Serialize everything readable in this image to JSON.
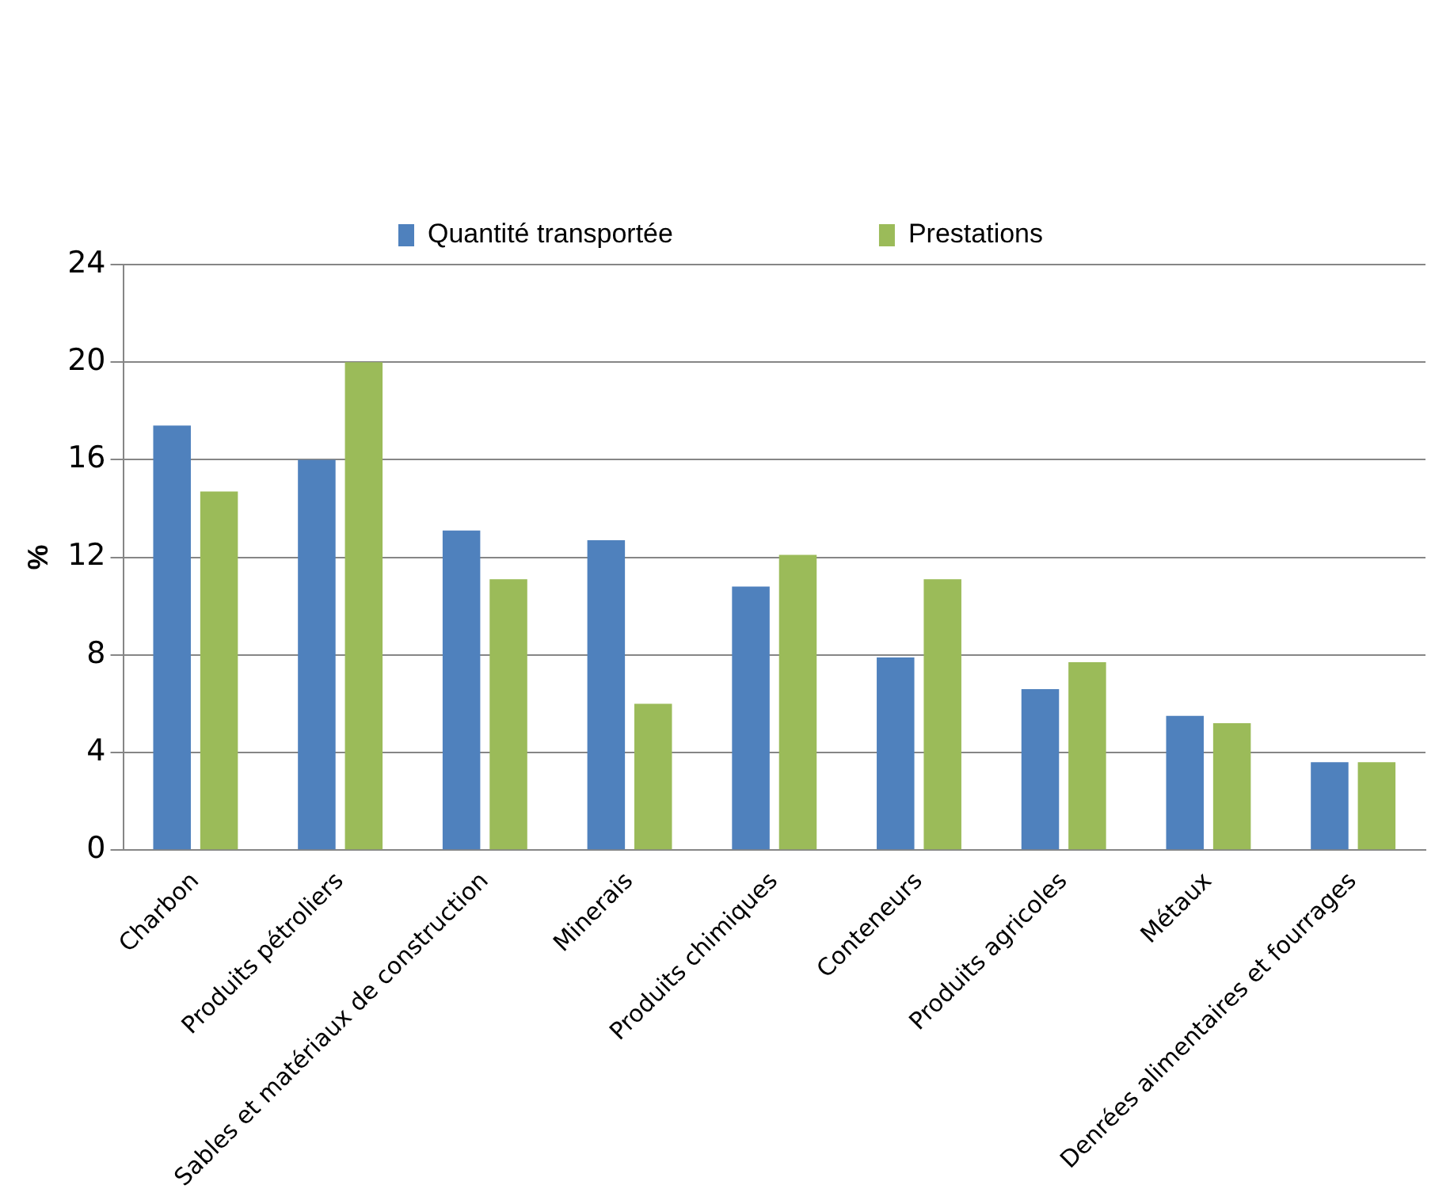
{
  "chart_data": {
    "type": "bar",
    "ylabel": "%",
    "categories": [
      "Charbon",
      "Produits pétroliers",
      "Sables et matériaux de construction",
      "Minerais",
      "Produits chimiques",
      "Conteneurs",
      "Produits agricoles",
      "Métaux",
      "Denrées alimentaires et fourrages"
    ],
    "series": [
      {
        "name": "Quantité transportée",
        "color": "#4f81bd",
        "values": [
          17.4,
          16.0,
          13.1,
          12.7,
          10.8,
          7.9,
          6.6,
          5.5,
          3.6
        ]
      },
      {
        "name": "Prestations",
        "color": "#9bbb59",
        "values": [
          14.7,
          20.0,
          11.1,
          6.0,
          12.1,
          11.1,
          7.7,
          5.2,
          3.6
        ]
      }
    ],
    "ylim": [
      0,
      24
    ],
    "yticks": [
      0,
      4,
      8,
      12,
      16,
      20,
      24
    ],
    "grid": "y",
    "legend": "top"
  }
}
